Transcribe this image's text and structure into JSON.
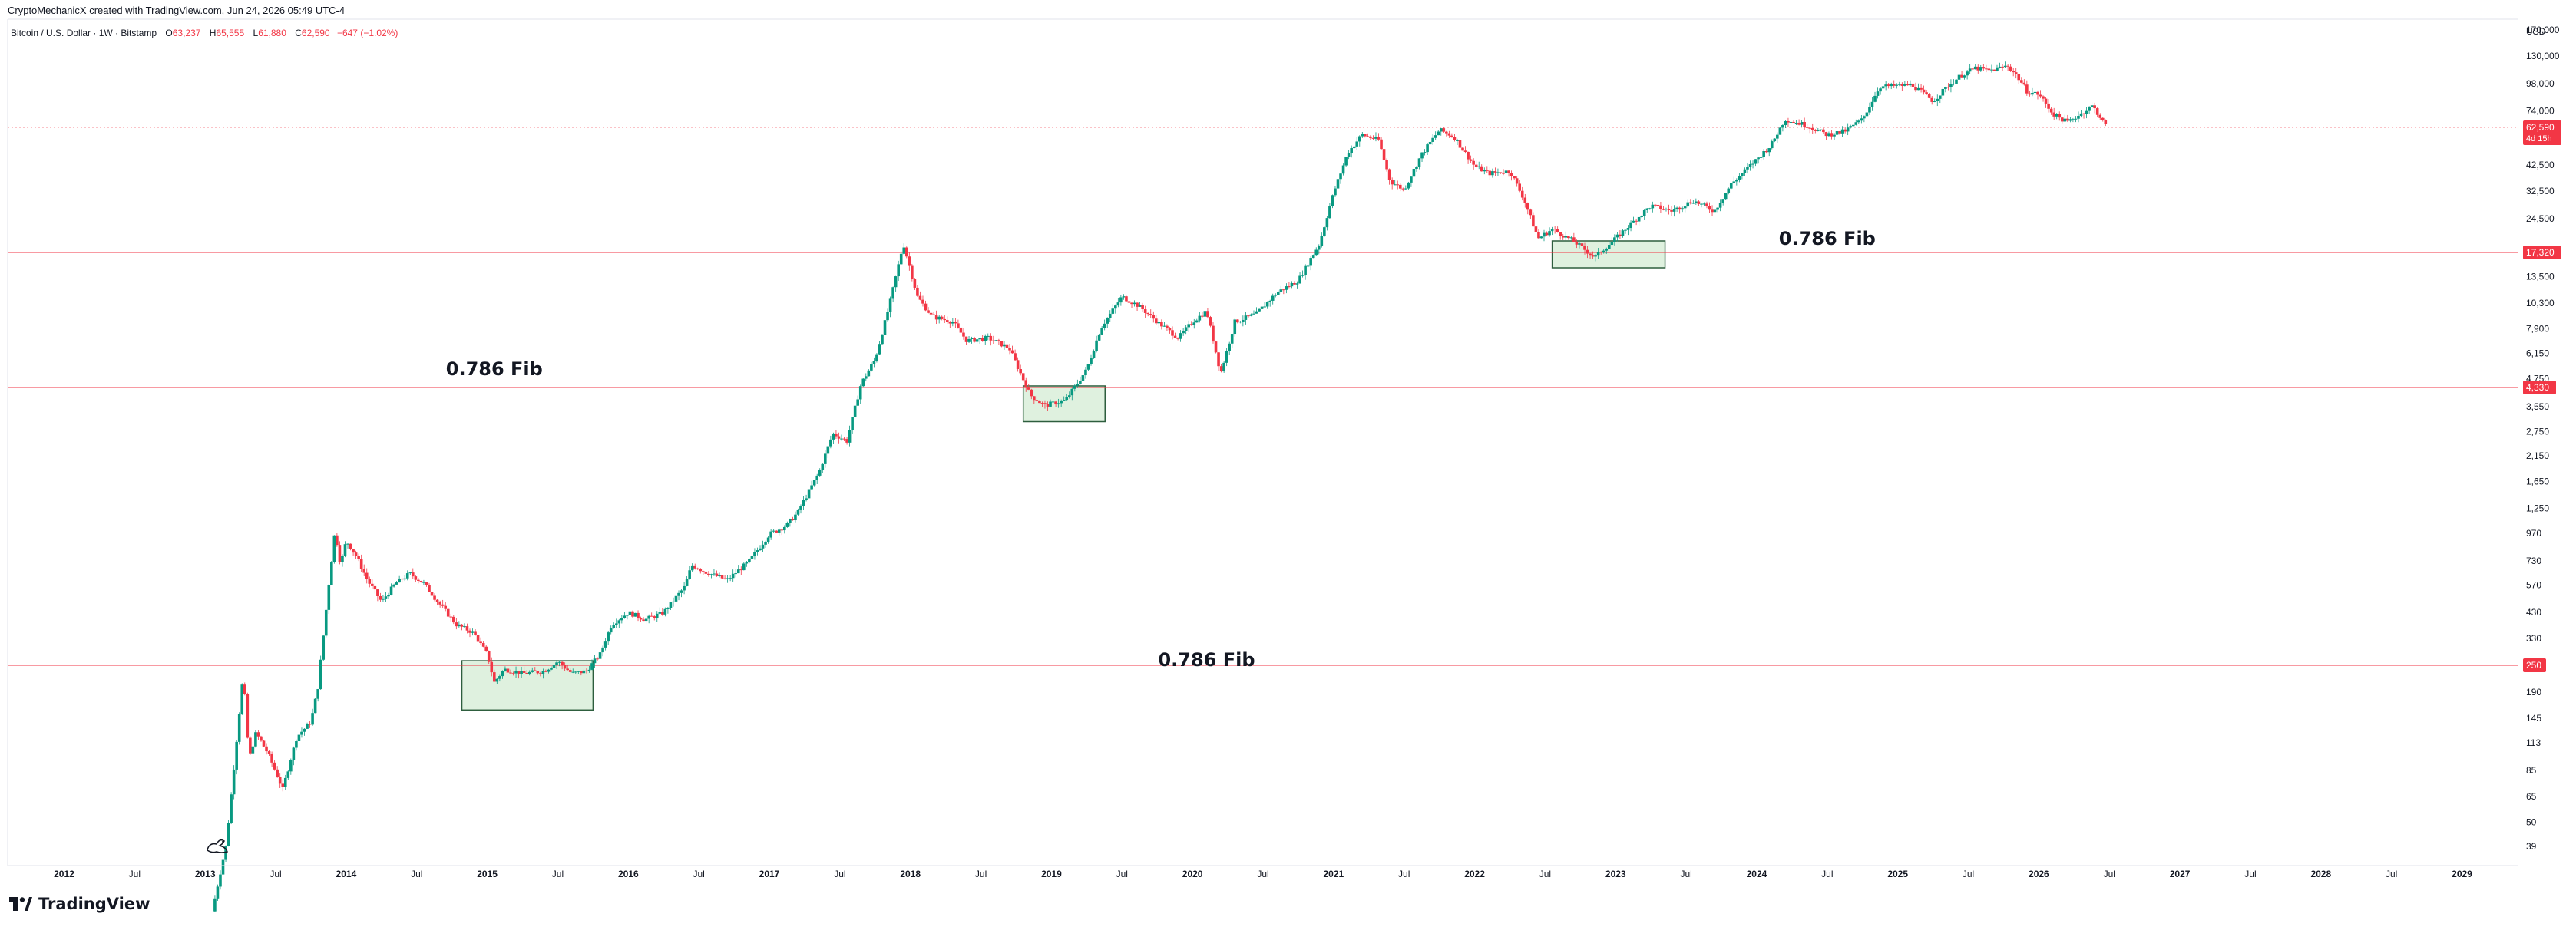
{
  "header": {
    "attribution": "CryptoMechanicX created with TradingView.com, Jun 24, 2026 05:49 UTC-4",
    "symbol": "Bitcoin / U.S. Dollar · 1W · Bitstamp",
    "ohlc": {
      "open_label": "O",
      "open": "63,237",
      "high_label": "H",
      "high": "65,555",
      "low_label": "L",
      "low": "61,880",
      "close_label": "C",
      "close": "62,590",
      "change": "−647 (−1.02%)"
    }
  },
  "brand": {
    "name": "TradingView",
    "icon": "tradingview-logo-icon"
  },
  "chart_data": {
    "type": "candlestick",
    "currency": "USD",
    "y_scale": "log",
    "ylim": [
      32,
      190000
    ],
    "xlim": [
      2011.6,
      2029.4
    ],
    "y_ticks": [
      {
        "value": 170000,
        "label": "170,000"
      },
      {
        "value": 130000,
        "label": "130,000"
      },
      {
        "value": 98000,
        "label": "98,000"
      },
      {
        "value": 74000,
        "label": "74,000"
      },
      {
        "value": 42500,
        "label": "42,500"
      },
      {
        "value": 32500,
        "label": "32,500"
      },
      {
        "value": 24500,
        "label": "24,500"
      },
      {
        "value": 13500,
        "label": "13,500"
      },
      {
        "value": 10300,
        "label": "10,300"
      },
      {
        "value": 7900,
        "label": "7,900"
      },
      {
        "value": 6150,
        "label": "6,150"
      },
      {
        "value": 4750,
        "label": "4,750"
      },
      {
        "value": 3550,
        "label": "3,550"
      },
      {
        "value": 2750,
        "label": "2,750"
      },
      {
        "value": 2150,
        "label": "2,150"
      },
      {
        "value": 1650,
        "label": "1,650"
      },
      {
        "value": 1250,
        "label": "1,250"
      },
      {
        "value": 970,
        "label": "970"
      },
      {
        "value": 730,
        "label": "730"
      },
      {
        "value": 570,
        "label": "570"
      },
      {
        "value": 430,
        "label": "430"
      },
      {
        "value": 330,
        "label": "330"
      },
      {
        "value": 190,
        "label": "190"
      },
      {
        "value": 145,
        "label": "145"
      },
      {
        "value": 113,
        "label": "113"
      },
      {
        "value": 85,
        "label": "85"
      },
      {
        "value": 65,
        "label": "65"
      },
      {
        "value": 50,
        "label": "50"
      },
      {
        "value": 39,
        "label": "39"
      }
    ],
    "x_ticks": [
      {
        "value": 2012.0,
        "label": "2012",
        "bold": true
      },
      {
        "value": 2012.5,
        "label": "Jul",
        "bold": false
      },
      {
        "value": 2013.0,
        "label": "2013",
        "bold": true
      },
      {
        "value": 2013.5,
        "label": "Jul",
        "bold": false
      },
      {
        "value": 2014.0,
        "label": "2014",
        "bold": true
      },
      {
        "value": 2014.5,
        "label": "Jul",
        "bold": false
      },
      {
        "value": 2015.0,
        "label": "2015",
        "bold": true
      },
      {
        "value": 2015.5,
        "label": "Jul",
        "bold": false
      },
      {
        "value": 2016.0,
        "label": "2016",
        "bold": true
      },
      {
        "value": 2016.5,
        "label": "Jul",
        "bold": false
      },
      {
        "value": 2017.0,
        "label": "2017",
        "bold": true
      },
      {
        "value": 2017.5,
        "label": "Jul",
        "bold": false
      },
      {
        "value": 2018.0,
        "label": "2018",
        "bold": true
      },
      {
        "value": 2018.5,
        "label": "Jul",
        "bold": false
      },
      {
        "value": 2019.0,
        "label": "2019",
        "bold": true
      },
      {
        "value": 2019.5,
        "label": "Jul",
        "bold": false
      },
      {
        "value": 2020.0,
        "label": "2020",
        "bold": true
      },
      {
        "value": 2020.5,
        "label": "Jul",
        "bold": false
      },
      {
        "value": 2021.0,
        "label": "2021",
        "bold": true
      },
      {
        "value": 2021.5,
        "label": "Jul",
        "bold": false
      },
      {
        "value": 2022.0,
        "label": "2022",
        "bold": true
      },
      {
        "value": 2022.5,
        "label": "Jul",
        "bold": false
      },
      {
        "value": 2023.0,
        "label": "2023",
        "bold": true
      },
      {
        "value": 2023.5,
        "label": "Jul",
        "bold": false
      },
      {
        "value": 2024.0,
        "label": "2024",
        "bold": true
      },
      {
        "value": 2024.5,
        "label": "Jul",
        "bold": false
      },
      {
        "value": 2025.0,
        "label": "2025",
        "bold": true
      },
      {
        "value": 2025.5,
        "label": "Jul",
        "bold": false
      },
      {
        "value": 2026.0,
        "label": "2026",
        "bold": true
      },
      {
        "value": 2026.5,
        "label": "Jul",
        "bold": false
      },
      {
        "value": 2027.0,
        "label": "2027",
        "bold": true
      },
      {
        "value": 2027.5,
        "label": "Jul",
        "bold": false
      },
      {
        "value": 2028.0,
        "label": "2028",
        "bold": true
      },
      {
        "value": 2028.5,
        "label": "Jul",
        "bold": false
      },
      {
        "value": 2029.0,
        "label": "2029",
        "bold": true
      }
    ],
    "price_path": [
      [
        2013.05,
        20
      ],
      [
        2013.15,
        40
      ],
      [
        2013.27,
        230
      ],
      [
        2013.31,
        95
      ],
      [
        2013.36,
        125
      ],
      [
        2013.45,
        100
      ],
      [
        2013.55,
        70
      ],
      [
        2013.65,
        120
      ],
      [
        2013.75,
        140
      ],
      [
        2013.8,
        200
      ],
      [
        2013.88,
        600
      ],
      [
        2013.92,
        1000
      ],
      [
        2013.96,
        700
      ],
      [
        2014.0,
        900
      ],
      [
        2014.08,
        750
      ],
      [
        2014.15,
        600
      ],
      [
        2014.25,
        480
      ],
      [
        2014.35,
        580
      ],
      [
        2014.45,
        640
      ],
      [
        2014.55,
        580
      ],
      [
        2014.65,
        480
      ],
      [
        2014.78,
        380
      ],
      [
        2014.9,
        350
      ],
      [
        2015.0,
        280
      ],
      [
        2015.05,
        210
      ],
      [
        2015.12,
        240
      ],
      [
        2015.25,
        230
      ],
      [
        2015.4,
        235
      ],
      [
        2015.5,
        260
      ],
      [
        2015.6,
        230
      ],
      [
        2015.7,
        235
      ],
      [
        2015.8,
        280
      ],
      [
        2015.88,
        380
      ],
      [
        2016.0,
        430
      ],
      [
        2016.12,
        400
      ],
      [
        2016.25,
        430
      ],
      [
        2016.4,
        560
      ],
      [
        2016.45,
        700
      ],
      [
        2016.55,
        650
      ],
      [
        2016.7,
        600
      ],
      [
        2016.85,
        720
      ],
      [
        2017.0,
        960
      ],
      [
        2017.12,
        1050
      ],
      [
        2017.2,
        1200
      ],
      [
        2017.35,
        1800
      ],
      [
        2017.45,
        2700
      ],
      [
        2017.55,
        2500
      ],
      [
        2017.65,
        4500
      ],
      [
        2017.75,
        5800
      ],
      [
        2017.85,
        10000
      ],
      [
        2017.95,
        19000
      ],
      [
        2018.05,
        11000
      ],
      [
        2018.15,
        9000
      ],
      [
        2018.3,
        8500
      ],
      [
        2018.4,
        7000
      ],
      [
        2018.55,
        7200
      ],
      [
        2018.7,
        6500
      ],
      [
        2018.85,
        4000
      ],
      [
        2018.95,
        3600
      ],
      [
        2019.1,
        3800
      ],
      [
        2019.25,
        5200
      ],
      [
        2019.35,
        8000
      ],
      [
        2019.5,
        11000
      ],
      [
        2019.62,
        10000
      ],
      [
        2019.75,
        8500
      ],
      [
        2019.9,
        7200
      ],
      [
        2020.0,
        8500
      ],
      [
        2020.1,
        9500
      ],
      [
        2020.2,
        5000
      ],
      [
        2020.3,
        8500
      ],
      [
        2020.45,
        9200
      ],
      [
        2020.6,
        11500
      ],
      [
        2020.75,
        13000
      ],
      [
        2020.9,
        19000
      ],
      [
        2021.0,
        32000
      ],
      [
        2021.1,
        48000
      ],
      [
        2021.2,
        58000
      ],
      [
        2021.32,
        55000
      ],
      [
        2021.4,
        36000
      ],
      [
        2021.5,
        33000
      ],
      [
        2021.62,
        47000
      ],
      [
        2021.75,
        61000
      ],
      [
        2021.85,
        57000
      ],
      [
        2022.0,
        42000
      ],
      [
        2022.1,
        39000
      ],
      [
        2022.25,
        40000
      ],
      [
        2022.35,
        30000
      ],
      [
        2022.45,
        20000
      ],
      [
        2022.55,
        22000
      ],
      [
        2022.7,
        19500
      ],
      [
        2022.85,
        16500
      ],
      [
        2023.0,
        20000
      ],
      [
        2023.1,
        23000
      ],
      [
        2023.25,
        28000
      ],
      [
        2023.4,
        26500
      ],
      [
        2023.55,
        29500
      ],
      [
        2023.7,
        26500
      ],
      [
        2023.82,
        35000
      ],
      [
        2023.95,
        42000
      ],
      [
        2024.1,
        52000
      ],
      [
        2024.2,
        68000
      ],
      [
        2024.35,
        64000
      ],
      [
        2024.5,
        58000
      ],
      [
        2024.62,
        60000
      ],
      [
        2024.75,
        68000
      ],
      [
        2024.87,
        95000
      ],
      [
        2025.0,
        96000
      ],
      [
        2025.1,
        97000
      ],
      [
        2025.25,
        82000
      ],
      [
        2025.35,
        95000
      ],
      [
        2025.45,
        107000
      ],
      [
        2025.55,
        115000
      ],
      [
        2025.65,
        112000
      ],
      [
        2025.78,
        118000
      ],
      [
        2025.85,
        105000
      ],
      [
        2025.92,
        90000
      ],
      [
        2026.0,
        88000
      ],
      [
        2026.1,
        72000
      ],
      [
        2026.2,
        66000
      ],
      [
        2026.3,
        72000
      ],
      [
        2026.38,
        78000
      ],
      [
        2026.42,
        72000
      ],
      [
        2026.48,
        62590
      ]
    ],
    "fib_levels": [
      {
        "value": 17320,
        "price_label": "17,320"
      },
      {
        "value": 4330,
        "price_label": "4,330"
      },
      {
        "value": 250,
        "price_label": "250"
      }
    ],
    "fib_annotations": [
      {
        "text": "0.786 Fib",
        "x": 2024.5,
        "y": 19800
      },
      {
        "text": "0.786 Fib",
        "x": 2015.05,
        "y": 5200
      },
      {
        "text": "0.786 Fib",
        "x": 2020.1,
        "y": 262
      }
    ],
    "zones": [
      {
        "x0": 2014.82,
        "x1": 2015.75,
        "y0": 158,
        "y1": 262
      },
      {
        "x0": 2018.8,
        "x1": 2019.38,
        "y0": 3050,
        "y1": 4400
      },
      {
        "x0": 2022.55,
        "x1": 2023.35,
        "y0": 14800,
        "y1": 19500
      }
    ],
    "last_price": {
      "value": 62590,
      "label": "62,590",
      "countdown": "4d 15h"
    }
  }
}
